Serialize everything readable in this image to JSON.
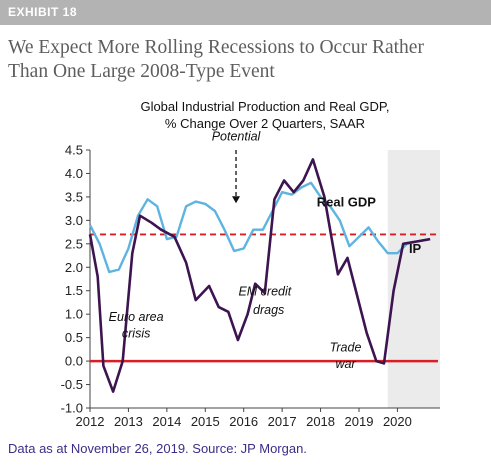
{
  "exhibit_label": "EXHIBIT 18",
  "headline_line1": "We Expect More Rolling Recessions to Occur Rather",
  "headline_line2": "Than One Large 2008-Type Event",
  "chart_title_line1": "Global Industrial Production and Real GDP,",
  "chart_title_line2": "% Change Over 2 Quarters, SAAR",
  "footer": "Data as at November 26, 2019. Source: JP Morgan.",
  "colors": {
    "ip": "#3d1450",
    "gdp": "#5eb4e0",
    "zero_line": "#d91f26",
    "potential_line": "#d91f26",
    "shade": "#ebebeb",
    "footer": "#3b2e88"
  },
  "chart_data": {
    "type": "line",
    "xlim": [
      2012,
      2020.9
    ],
    "ylim": [
      -1.0,
      4.5
    ],
    "x_ticks": [
      "2012",
      "2013",
      "2014",
      "2015",
      "2016",
      "2017",
      "2018",
      "2019",
      "2020"
    ],
    "y_ticks": [
      "4.5",
      "4.0",
      "3.5",
      "3.0",
      "2.5",
      "2.0",
      "1.5",
      "1.0",
      "0.5",
      "0.0",
      "-0.5",
      "-1.0"
    ],
    "potential": 2.7,
    "zero_line": 0.0,
    "shaded_forecast_from": 2019.75,
    "series": [
      {
        "name": "Real GDP",
        "points": [
          [
            2012.0,
            2.9
          ],
          [
            2012.25,
            2.5
          ],
          [
            2012.5,
            1.9
          ],
          [
            2012.75,
            1.95
          ],
          [
            2013.0,
            2.4
          ],
          [
            2013.25,
            3.1
          ],
          [
            2013.5,
            3.45
          ],
          [
            2013.75,
            3.3
          ],
          [
            2014.0,
            2.6
          ],
          [
            2014.25,
            2.65
          ],
          [
            2014.5,
            3.3
          ],
          [
            2014.75,
            3.4
          ],
          [
            2015.0,
            3.35
          ],
          [
            2015.25,
            3.2
          ],
          [
            2015.5,
            2.8
          ],
          [
            2015.75,
            2.35
          ],
          [
            2016.0,
            2.4
          ],
          [
            2016.25,
            2.8
          ],
          [
            2016.5,
            2.8
          ],
          [
            2016.75,
            3.2
          ],
          [
            2017.0,
            3.6
          ],
          [
            2017.25,
            3.55
          ],
          [
            2017.5,
            3.7
          ],
          [
            2017.75,
            3.8
          ],
          [
            2018.0,
            3.5
          ],
          [
            2018.25,
            3.3
          ],
          [
            2018.5,
            3.0
          ],
          [
            2018.75,
            2.45
          ],
          [
            2019.0,
            2.65
          ],
          [
            2019.25,
            2.85
          ],
          [
            2019.5,
            2.55
          ],
          [
            2019.75,
            2.3
          ],
          [
            2020.0,
            2.3
          ],
          [
            2020.25,
            2.5
          ],
          [
            2020.5,
            2.55
          ],
          [
            2020.85,
            2.6
          ]
        ]
      },
      {
        "name": "IP",
        "points": [
          [
            2012.0,
            2.7
          ],
          [
            2012.2,
            1.8
          ],
          [
            2012.35,
            -0.1
          ],
          [
            2012.6,
            -0.65
          ],
          [
            2012.85,
            0.0
          ],
          [
            2013.1,
            2.3
          ],
          [
            2013.3,
            3.1
          ],
          [
            2013.6,
            2.95
          ],
          [
            2013.85,
            2.8
          ],
          [
            2014.2,
            2.65
          ],
          [
            2014.5,
            2.1
          ],
          [
            2014.75,
            1.3
          ],
          [
            2015.1,
            1.6
          ],
          [
            2015.35,
            1.15
          ],
          [
            2015.6,
            1.05
          ],
          [
            2015.85,
            0.45
          ],
          [
            2016.1,
            1.0
          ],
          [
            2016.3,
            1.65
          ],
          [
            2016.55,
            1.45
          ],
          [
            2016.8,
            3.45
          ],
          [
            2017.05,
            3.85
          ],
          [
            2017.3,
            3.6
          ],
          [
            2017.55,
            3.85
          ],
          [
            2017.8,
            4.3
          ],
          [
            2018.1,
            3.5
          ],
          [
            2018.45,
            1.85
          ],
          [
            2018.7,
            2.2
          ],
          [
            2018.95,
            1.4
          ],
          [
            2019.2,
            0.6
          ],
          [
            2019.45,
            0.0
          ],
          [
            2019.65,
            -0.05
          ],
          [
            2019.9,
            1.5
          ],
          [
            2020.15,
            2.5
          ],
          [
            2020.5,
            2.55
          ],
          [
            2020.85,
            2.6
          ]
        ]
      }
    ],
    "annotations": [
      {
        "text": "Potential",
        "x": 2015.8,
        "y": 4.7
      },
      {
        "text": "Euro area",
        "x": 2013.2,
        "y": 0.85
      },
      {
        "text": "crisis",
        "x": 2013.2,
        "y": 0.5
      },
      {
        "text": "EM credit",
        "x": 2016.55,
        "y": 1.4
      },
      {
        "text": "drags",
        "x": 2016.65,
        "y": 1.0
      },
      {
        "text": "Trade",
        "x": 2018.65,
        "y": 0.2
      },
      {
        "text": "war",
        "x": 2018.65,
        "y": -0.15
      }
    ],
    "labels": [
      {
        "text": "Real GDP",
        "x": 2017.9,
        "y": 3.3
      },
      {
        "text": "IP",
        "x": 2020.3,
        "y": 2.3
      }
    ]
  }
}
